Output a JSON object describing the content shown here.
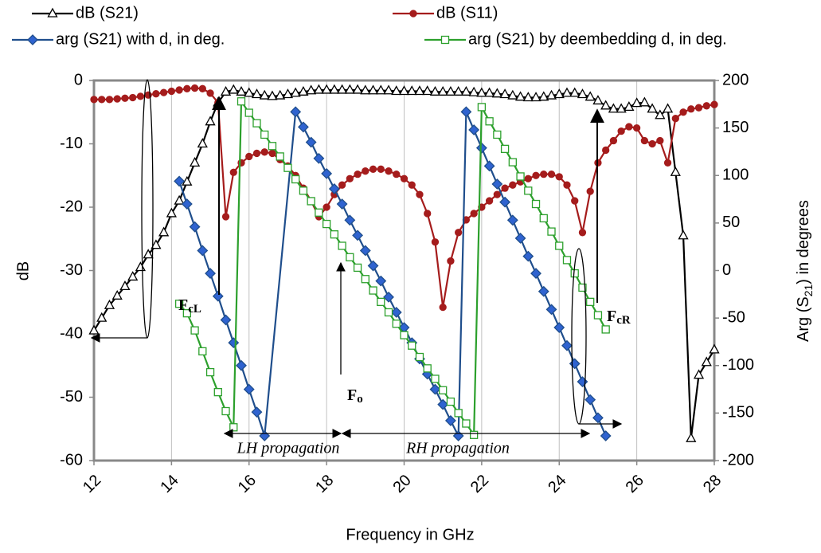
{
  "chart_data": {
    "type": "line",
    "xlabel": "Frequency in GHz",
    "ylabel": "dB",
    "y2label": {
      "pre": "Arg (S",
      "sub": "21",
      "post": ") in degrees"
    },
    "xlim": [
      12,
      28
    ],
    "xticks": [
      12,
      14,
      16,
      18,
      20,
      22,
      24,
      26,
      28
    ],
    "ylim": [
      -60,
      0
    ],
    "yticks": [
      0,
      -10,
      -20,
      -30,
      -40,
      -50,
      -60
    ],
    "y2lim": [
      -200,
      200
    ],
    "y2ticks": [
      200,
      150,
      100,
      50,
      0,
      -50,
      -100,
      -150,
      -200
    ],
    "grid": true,
    "x": [
      12.0,
      12.2,
      12.4,
      12.6,
      12.8,
      13.0,
      13.2,
      13.4,
      13.6,
      13.8,
      14.0,
      14.2,
      14.4,
      14.6,
      14.8,
      15.0,
      15.2,
      15.4,
      15.6,
      15.8,
      16.0,
      16.2,
      16.4,
      16.6,
      16.8,
      17.0,
      17.2,
      17.4,
      17.6,
      17.8,
      18.0,
      18.2,
      18.4,
      18.6,
      18.8,
      19.0,
      19.2,
      19.4,
      19.6,
      19.8,
      20.0,
      20.2,
      20.4,
      20.6,
      20.8,
      21.0,
      21.2,
      21.4,
      21.6,
      21.8,
      22.0,
      22.2,
      22.4,
      22.6,
      22.8,
      23.0,
      23.2,
      23.4,
      23.6,
      23.8,
      24.0,
      24.2,
      24.4,
      24.6,
      24.8,
      25.0,
      25.2,
      25.4,
      25.6,
      25.8,
      26.0,
      26.2,
      26.4,
      26.6,
      26.8,
      27.0,
      27.2,
      27.4,
      27.6,
      27.8,
      28.0
    ],
    "series": [
      {
        "name": "dB (S21)",
        "color": "#000000",
        "marker": "triangle",
        "values": [
          -39.5,
          -37.5,
          -35.5,
          -34,
          -32.5,
          -31,
          -29.5,
          -27.5,
          -26,
          -24,
          -21,
          -19,
          -16,
          -13,
          -10,
          -6.5,
          -3.5,
          -1.8,
          -1.5,
          -1.8,
          -2,
          -2.2,
          -2.4,
          -2.5,
          -2.4,
          -2.2,
          -2,
          -1.8,
          -1.6,
          -1.5,
          -1.5,
          -1.5,
          -1.5,
          -1.5,
          -1.5,
          -1.6,
          -1.6,
          -1.6,
          -1.6,
          -1.7,
          -1.7,
          -1.7,
          -1.7,
          -1.7,
          -1.8,
          -1.8,
          -1.8,
          -1.8,
          -1.8,
          -1.9,
          -2,
          -2,
          -2.1,
          -2.2,
          -2.4,
          -2.6,
          -2.7,
          -2.7,
          -2.6,
          -2.4,
          -2.2,
          -2,
          -2,
          -2.2,
          -2.6,
          -3.2,
          -4,
          -4.5,
          -4.5,
          -4.2,
          -3.6,
          -3.5,
          -4.5,
          -5.5,
          -4.5,
          -14.5,
          -24.5,
          -56.5,
          -46.5,
          -44.5,
          -42.5
        ]
      },
      {
        "name": "dB (S11)",
        "color": "#a51c1c",
        "marker": "circle",
        "values": [
          -3,
          -3,
          -3,
          -2.9,
          -2.8,
          -2.7,
          -2.5,
          -2.3,
          -2.1,
          -1.9,
          -1.7,
          -1.5,
          -1.3,
          -1.2,
          -1.3,
          -2,
          -3.5,
          -21.5,
          -14.5,
          -13,
          -12,
          -11.5,
          -11.3,
          -11.5,
          -12.5,
          -13.5,
          -15,
          -17,
          -19,
          -21.5,
          -20,
          -18,
          -16.5,
          -15.5,
          -14.8,
          -14.3,
          -14,
          -14,
          -14.3,
          -14.8,
          -15.5,
          -16.5,
          -18,
          -21,
          -25.5,
          -35.8,
          -28.5,
          -24,
          -22,
          -21,
          -20,
          -19,
          -18,
          -17,
          -16.5,
          -16,
          -15.5,
          -15,
          -14.8,
          -14.8,
          -15.2,
          -16.5,
          -19,
          -24,
          -17.5,
          -13,
          -11,
          -9.5,
          -8,
          -7.3,
          -7.5,
          -9.5,
          -10,
          -9.5,
          -13,
          -6,
          -5,
          -4.5,
          -4.3,
          -4,
          -3.8
        ]
      },
      {
        "name": "arg (S21) with d, in deg.",
        "color": "#1f4e8c",
        "fill": "#2f63d0",
        "marker": "diamond",
        "axis": "y2",
        "x": [
          14.2,
          14.4,
          14.6,
          14.8,
          15.0,
          15.2,
          15.4,
          15.6,
          15.8,
          16.0,
          16.2,
          16.4,
          17.2,
          17.4,
          17.6,
          17.8,
          18.0,
          18.2,
          18.4,
          18.6,
          18.8,
          19.0,
          19.2,
          19.4,
          19.6,
          19.8,
          20.0,
          20.2,
          20.4,
          20.6,
          20.8,
          21.0,
          21.2,
          21.4,
          21.6,
          21.8,
          22.0,
          22.2,
          22.4,
          22.6,
          22.8,
          23.0,
          23.2,
          23.4,
          23.6,
          23.8,
          24.0,
          24.2,
          24.4,
          24.6,
          24.8,
          25.0,
          25.2
        ],
        "values": [
          94,
          70,
          46,
          21,
          -3,
          -27,
          -52,
          -76,
          -100,
          -125,
          -149,
          -174,
          167,
          151,
          135,
          118,
          102,
          86,
          70,
          53,
          37,
          21,
          5,
          -11,
          -28,
          -44,
          -60,
          -76,
          -93,
          -109,
          -125,
          -141,
          -158,
          -174,
          167,
          148,
          129,
          110,
          91,
          72,
          53,
          34,
          15,
          -3,
          -22,
          -41,
          -60,
          -79,
          -98,
          -117,
          -136,
          -155,
          -174
        ]
      },
      {
        "name": "arg (S21) by deembedding d, in deg.",
        "color": "#2ca02c",
        "fill": "#ffffff",
        "marker": "square",
        "axis": "y2",
        "x": [
          14.2,
          14.4,
          14.6,
          14.8,
          15.0,
          15.2,
          15.4,
          15.6,
          15.8,
          16.0,
          16.2,
          16.4,
          16.6,
          16.8,
          17.0,
          17.2,
          17.4,
          17.6,
          17.8,
          18.0,
          18.2,
          18.4,
          18.6,
          18.8,
          19.0,
          19.2,
          19.4,
          19.6,
          19.8,
          20.0,
          20.2,
          20.4,
          20.6,
          20.8,
          21.0,
          21.2,
          21.4,
          21.6,
          21.8,
          22.0,
          22.2,
          22.4,
          22.6,
          22.8,
          23.0,
          23.2,
          23.4,
          23.6,
          23.8,
          24.0,
          24.2,
          24.4,
          24.6,
          24.8,
          25.0,
          25.2
        ],
        "values": [
          -35,
          -45,
          -63,
          -85,
          -107,
          -128,
          -148,
          -165,
          178,
          166,
          155,
          143,
          131,
          120,
          108,
          96,
          84,
          73,
          61,
          49,
          38,
          26,
          14,
          3,
          -9,
          -21,
          -33,
          -44,
          -56,
          -68,
          -79,
          -91,
          -103,
          -114,
          -126,
          -138,
          -150,
          -161,
          -173,
          172,
          157,
          143,
          128,
          114,
          99,
          84,
          70,
          55,
          41,
          26,
          11,
          -3,
          -18,
          -33,
          -47,
          -62
        ]
      }
    ],
    "annotations": [
      {
        "text": "F",
        "sub": "cL"
      },
      {
        "text": "F",
        "sub": "o"
      },
      {
        "text": "F",
        "sub": "cR"
      },
      {
        "text": "LH propagation"
      },
      {
        "text": "RH propagation"
      }
    ]
  }
}
